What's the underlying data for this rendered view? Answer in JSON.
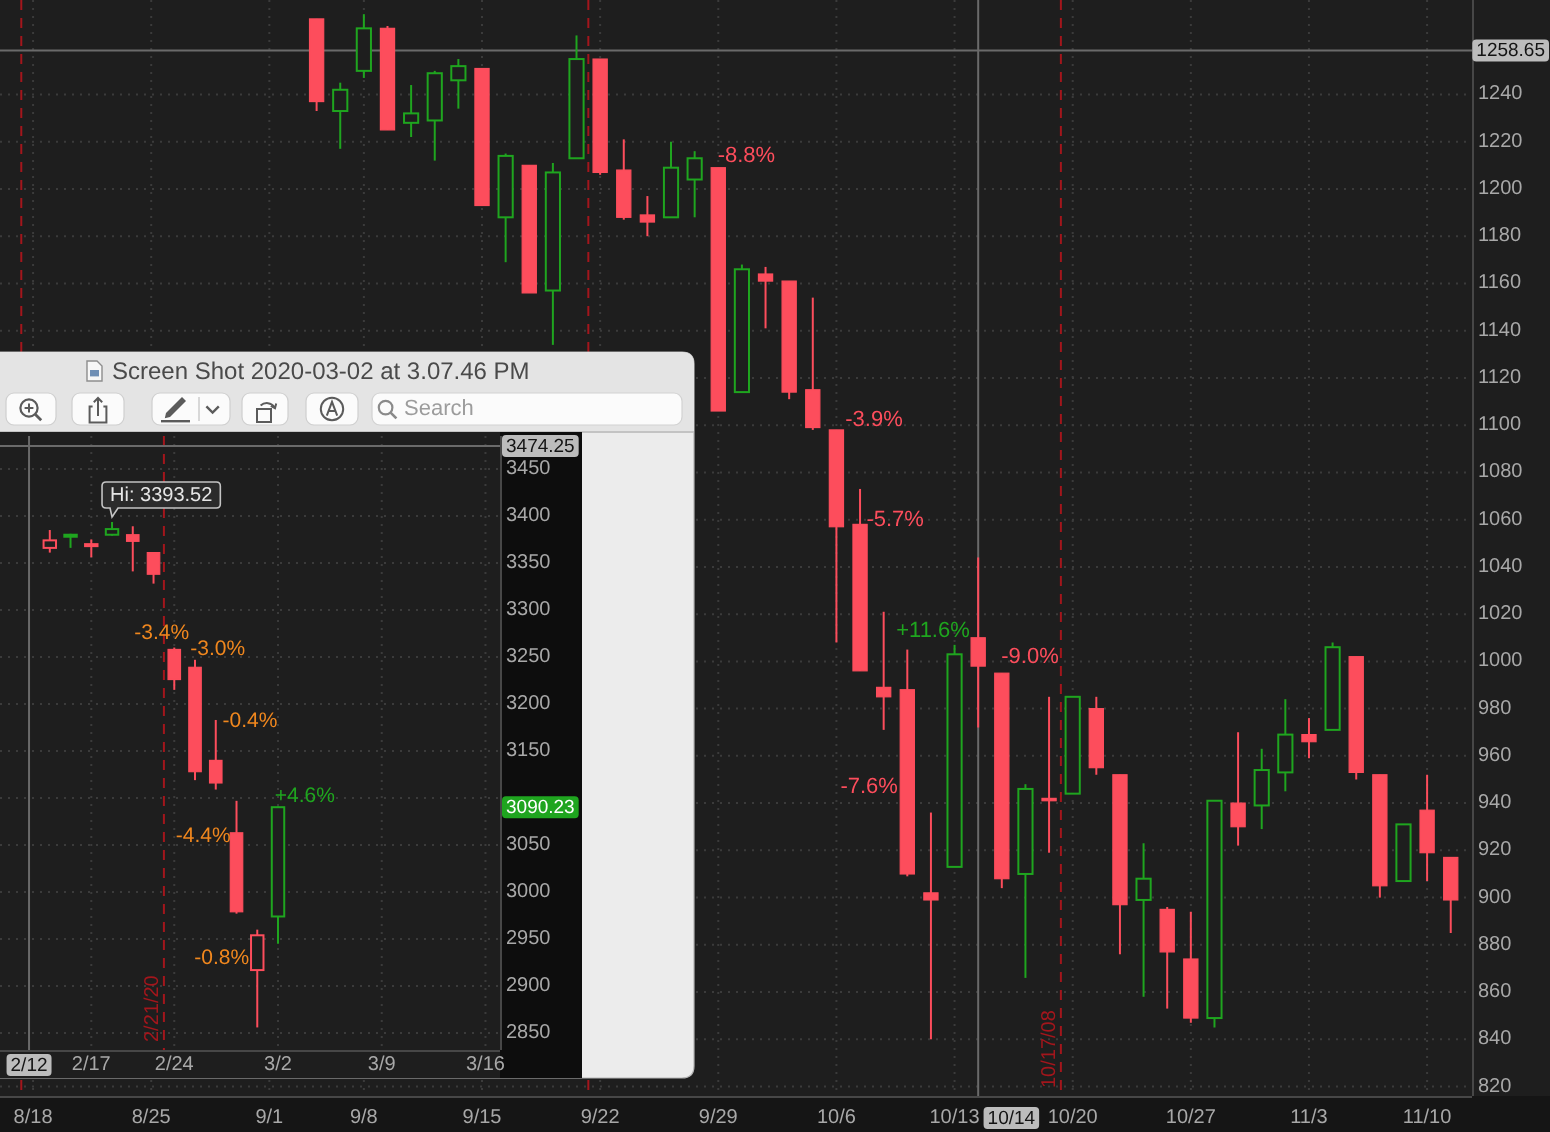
{
  "chart_data": [
    {
      "type": "candlestick",
      "categories": [
        null,
        "8/18",
        null,
        null,
        null,
        null,
        "8/25",
        null,
        null,
        null,
        null,
        "9/1",
        null,
        null,
        null,
        "9/8",
        null,
        null,
        null,
        null,
        "9/15",
        null,
        null,
        null,
        null,
        "9/22",
        null,
        null,
        null,
        null,
        "9/29",
        null,
        null,
        null,
        null,
        "10/6",
        null,
        null,
        null,
        null,
        "10/13",
        null,
        null,
        null,
        null,
        "10/20",
        null,
        null,
        null,
        null,
        "10/27",
        null,
        null,
        null,
        null,
        "11/3",
        null,
        null,
        null,
        null,
        "11/10",
        null
      ],
      "ohlc": [
        null,
        null,
        null,
        null,
        null,
        null,
        null,
        null,
        null,
        null,
        null,
        null,
        null,
        [
          1272,
          1272,
          1233,
          1237
        ],
        [
          1233,
          1245,
          1217,
          1242
        ],
        [
          1250,
          1274,
          1247,
          1268
        ],
        [
          1268,
          1269,
          1225,
          1225
        ],
        [
          1228,
          1244,
          1222,
          1232
        ],
        [
          1229,
          1250,
          1212,
          1249
        ],
        [
          1246,
          1255,
          1234,
          1252
        ],
        [
          1251,
          1251,
          1193,
          1193
        ],
        [
          1188,
          1215,
          1169,
          1214
        ],
        [
          1210,
          1210,
          1156,
          1156
        ],
        [
          1157,
          1211,
          1134,
          1207
        ],
        [
          1213,
          1265,
          1213,
          1255
        ],
        [
          1255,
          1255,
          1206,
          1207
        ],
        [
          1208,
          1221,
          1187,
          1188
        ],
        [
          1189,
          1197,
          1180,
          1186
        ],
        [
          1188,
          1220,
          1188,
          1209
        ],
        [
          1204,
          1216,
          1188,
          1213
        ],
        [
          1209,
          1209,
          1106,
          1106
        ],
        [
          1114,
          1168,
          1114,
          1166
        ],
        [
          1164,
          1167,
          1141,
          1161
        ],
        [
          1161,
          1161,
          1111,
          1114
        ],
        [
          1115,
          1154,
          1098,
          1099
        ],
        [
          1098,
          1098,
          1008,
          1057
        ],
        [
          1058,
          1073,
          996,
          996
        ],
        [
          989,
          1021,
          971,
          985
        ],
        [
          988,
          1005,
          909,
          910
        ],
        [
          902,
          936,
          840,
          899
        ],
        [
          913,
          1007,
          913,
          1003
        ],
        [
          1010,
          1044,
          972,
          998
        ],
        [
          995,
          995,
          904,
          908
        ],
        [
          910,
          948,
          866,
          946
        ],
        [
          942,
          985,
          919,
          941
        ],
        [
          944,
          985,
          944,
          985
        ],
        [
          980,
          985,
          952,
          955
        ],
        [
          952,
          952,
          876,
          897
        ],
        [
          899,
          923,
          858,
          908
        ],
        [
          895,
          896,
          853,
          877
        ],
        [
          874,
          894,
          847,
          849
        ],
        [
          849,
          941,
          845,
          941
        ],
        [
          940,
          970,
          922,
          930
        ],
        [
          939,
          963,
          929,
          954
        ],
        [
          953,
          984,
          945,
          969
        ],
        [
          969,
          976,
          959,
          966
        ],
        [
          971,
          1008,
          971,
          1006
        ],
        [
          1002,
          1002,
          950,
          953
        ],
        [
          952,
          952,
          900,
          905
        ],
        [
          907,
          931,
          907,
          931
        ],
        [
          937,
          952,
          907,
          919
        ],
        [
          917,
          917,
          885,
          899
        ]
      ],
      "colors": [
        null,
        null,
        null,
        null,
        null,
        null,
        null,
        null,
        null,
        null,
        null,
        null,
        null,
        "#fd4d5c",
        "#1fa51f",
        "#1fa51f",
        "#fd4d5c",
        "#1fa51f",
        "#1fa51f",
        "#1fa51f",
        "#fd4d5c",
        "#1fa51f",
        "#fd4d5c",
        "#1fa51f",
        "#1fa51f",
        "#fd4d5c",
        "#fd4d5c",
        "#fd4d5c",
        "#1fa51f",
        "#1fa51f",
        "#fd4d5c",
        "#1fa51f",
        "#fd4d5c",
        "#fd4d5c",
        "#fd4d5c",
        "#fd4d5c",
        "#fd4d5c",
        "#fd4d5c",
        "#fd4d5c",
        "#fd4d5c",
        "#1fa51f",
        "#fd4d5c",
        "#fd4d5c",
        "#1fa51f",
        "#fd4d5c",
        "#1fa51f",
        "#fd4d5c",
        "#fd4d5c",
        "#1fa51f",
        "#fd4d5c",
        "#fd4d5c",
        "#1fa51f",
        "#fd4d5c",
        "#1fa51f",
        "#1fa51f",
        "#fd4d5c",
        "#1fa51f",
        "#fd4d5c",
        "#fd4d5c",
        "#1fa51f",
        "#fd4d5c",
        "#fd4d5c"
      ],
      "ylim": [
        816,
        1280
      ],
      "yticks": [
        820,
        840,
        860,
        880,
        900,
        920,
        940,
        960,
        980,
        1000,
        1020,
        1040,
        1060,
        1080,
        1100,
        1120,
        1140,
        1160,
        1180,
        1200,
        1220,
        1240
      ],
      "grid": true,
      "ref_lines": [
        {
          "axis": "y",
          "value": 1258.65,
          "label": "1258.65",
          "color": "#6a6a6a",
          "line_style": "solid"
        }
      ],
      "annotations": [
        "-8.8%",
        "-3.9%",
        "-5.7%",
        "+11.6%",
        "-9.0%",
        "-7.6%",
        "10/17/08",
        "10/14"
      ]
    },
    {
      "type": "candlestick",
      "title": "Screen Shot 2020-03-02 at 3.07.46 PM",
      "categories": [
        null,
        null,
        null,
        "2/17",
        null,
        null,
        null,
        "2/24",
        null,
        null,
        null,
        null,
        "3/2",
        null,
        null,
        null,
        null,
        "3/9",
        null,
        null,
        null,
        null,
        "3/16"
      ],
      "ohlc": [
        null,
        [
          3366,
          3385,
          3361,
          3374
        ],
        [
          3378,
          3381,
          3366,
          3380
        ],
        [
          3369,
          3375,
          3356,
          3370
        ],
        [
          3380,
          3393.52,
          3379,
          3386
        ],
        [
          3380,
          3389,
          3341,
          3373
        ],
        [
          3361,
          3361,
          3328,
          3338
        ],
        [
          3258,
          3260,
          3215,
          3226
        ],
        [
          3239,
          3247,
          3119,
          3128
        ],
        [
          3140,
          3183,
          3109,
          3116
        ],
        [
          3063,
          3097,
          2977,
          2979
        ],
        [
          2917,
          2960,
          2856,
          2954
        ],
        [
          2974,
          3091,
          2945,
          3090.23
        ],
        null,
        null,
        null,
        null,
        null,
        null,
        null,
        null,
        null,
        null
      ],
      "colors": [
        null,
        "#fd4d5c",
        "#1fa51f",
        "#fd4d5c",
        "#1fa51f",
        "#fd4d5c",
        "#fd4d5c",
        "#fd4d5c",
        "#fd4d5c",
        "#fd4d5c",
        "#fd4d5c",
        "#fd4d5c",
        "#1fa51f",
        null,
        null,
        null,
        null,
        null,
        null,
        null,
        null,
        null,
        null
      ],
      "ylim": [
        2832,
        3485
      ],
      "yticks": [
        2850,
        2900,
        2950,
        3000,
        3050,
        {
          "value": 3100,
          "label": null
        },
        3150,
        3200,
        3250,
        3300,
        3350,
        3400,
        3450
      ],
      "grid": true,
      "ref_lines": [
        {
          "axis": "y",
          "value": 3474.25,
          "label": "3474.25",
          "color": "#6a6a6a",
          "line_style": "solid"
        }
      ],
      "annotations": [
        "Hi: 3393.52",
        "-3.4%",
        "-3.0%",
        "-0.4%",
        "-4.4%",
        "-0.8%",
        "+4.6%",
        "3090.23",
        "2/21/20",
        "2/12",
        "Search"
      ]
    }
  ]
}
